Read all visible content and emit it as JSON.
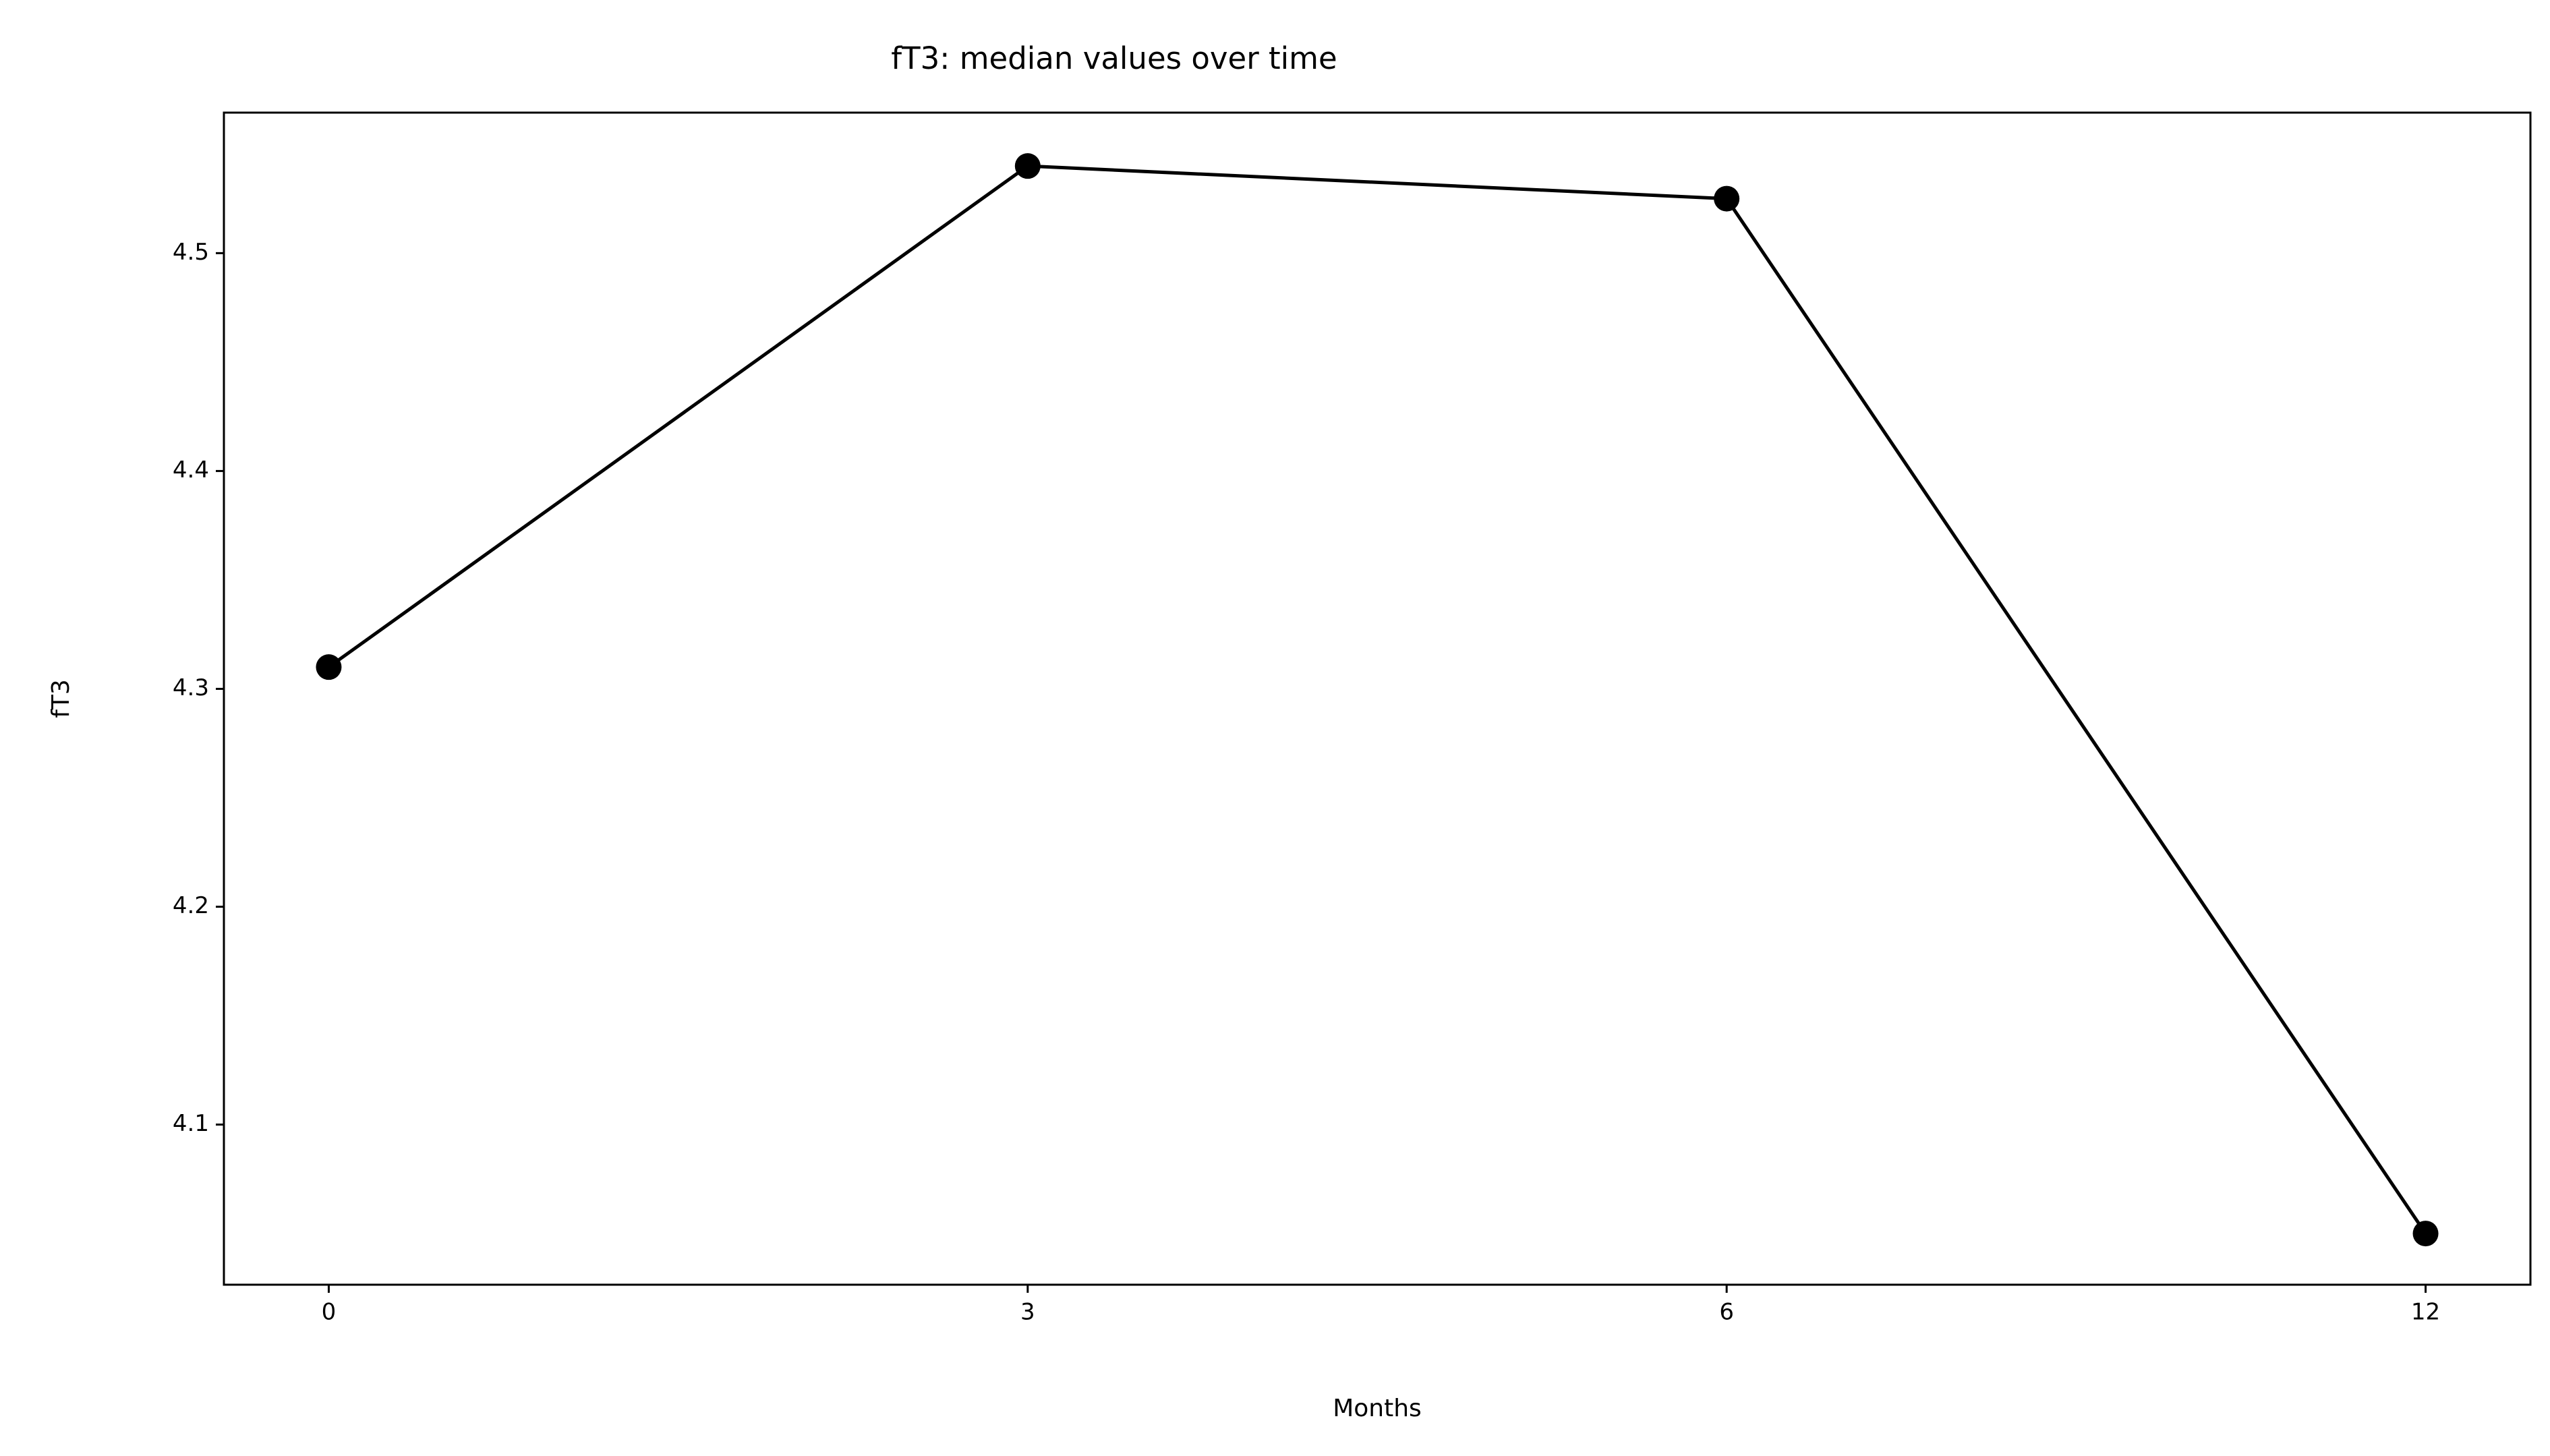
{
  "chart_data": {
    "type": "line",
    "title": "fT3: median values over time",
    "x_label": "Months",
    "y_label": "fT3",
    "categories": [
      "0",
      "3",
      "6",
      "12"
    ],
    "series": [
      {
        "name": "fT3",
        "color": "#000000",
        "values": [
          4.31,
          4.54,
          4.525,
          4.05
        ]
      }
    ],
    "ylim": [
      4.0265,
      4.5645
    ],
    "yticks": [
      4.1,
      4.2,
      4.3,
      4.4,
      4.5
    ],
    "grid": false
  }
}
